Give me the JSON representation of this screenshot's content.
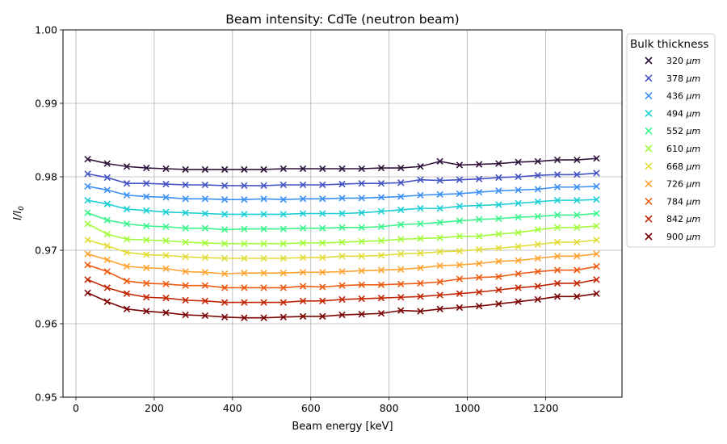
{
  "chart_data": {
    "type": "line",
    "title": "Beam intensity: CdTe (neutron beam)",
    "xlabel": "Beam energy [keV]",
    "ylabel": "I/I",
    "ylabel_subscript": "0",
    "xlim": [
      -33,
      1395
    ],
    "ylim": [
      0.95,
      1.0
    ],
    "x_ticks": [
      0,
      200,
      400,
      600,
      800,
      1000,
      1200
    ],
    "y_ticks": [
      0.95,
      0.96,
      0.97,
      0.98,
      0.99,
      1.0
    ],
    "x_tick_labels": [
      "0",
      "200",
      "400",
      "600",
      "800",
      "1000",
      "1200"
    ],
    "y_tick_labels": [
      "0.95",
      "0.96",
      "0.97",
      "0.98",
      "0.99",
      "1.00"
    ],
    "grid": true,
    "marker": "x",
    "legend_title": "Bulk thickness",
    "legend_unit": "μm",
    "legend_placement": "outside-right-top",
    "x": [
      30,
      80,
      130,
      180,
      230,
      280,
      330,
      380,
      430,
      480,
      530,
      580,
      630,
      680,
      730,
      780,
      830,
      880,
      930,
      980,
      1030,
      1080,
      1130,
      1180,
      1230,
      1280,
      1330
    ],
    "series": [
      {
        "name": "320",
        "color": "#30123b",
        "values": [
          0.9824,
          0.9818,
          0.9814,
          0.9812,
          0.9811,
          0.981,
          0.981,
          0.981,
          0.981,
          0.981,
          0.9811,
          0.9811,
          0.9811,
          0.9811,
          0.9811,
          0.9812,
          0.9812,
          0.9814,
          0.9821,
          0.9816,
          0.9817,
          0.9818,
          0.982,
          0.9821,
          0.9823,
          0.9823,
          0.9825
        ]
      },
      {
        "name": "378",
        "color": "#4454c4",
        "values": [
          0.9804,
          0.9799,
          0.9791,
          0.9791,
          0.979,
          0.9789,
          0.9789,
          0.9788,
          0.9788,
          0.9788,
          0.9789,
          0.9789,
          0.9789,
          0.979,
          0.9791,
          0.9791,
          0.9792,
          0.9796,
          0.9795,
          0.9796,
          0.9797,
          0.9799,
          0.98,
          0.9802,
          0.9803,
          0.9803,
          0.9805
        ]
      },
      {
        "name": "436",
        "color": "#3d91f5",
        "values": [
          0.9787,
          0.9782,
          0.9775,
          0.9773,
          0.9772,
          0.977,
          0.977,
          0.9769,
          0.9769,
          0.977,
          0.9769,
          0.977,
          0.977,
          0.9771,
          0.9771,
          0.9772,
          0.9773,
          0.9775,
          0.9776,
          0.9777,
          0.9779,
          0.9781,
          0.9782,
          0.9783,
          0.9786,
          0.9786,
          0.9787
        ]
      },
      {
        "name": "494",
        "color": "#1bcfd4",
        "values": [
          0.9768,
          0.9763,
          0.9756,
          0.9754,
          0.9752,
          0.9751,
          0.975,
          0.9749,
          0.9749,
          0.9749,
          0.9749,
          0.975,
          0.975,
          0.975,
          0.9751,
          0.9753,
          0.9755,
          0.9757,
          0.9757,
          0.976,
          0.9761,
          0.9762,
          0.9764,
          0.9766,
          0.9768,
          0.9768,
          0.9769
        ]
      },
      {
        "name": "552",
        "color": "#3df58d",
        "values": [
          0.9751,
          0.9741,
          0.9736,
          0.9733,
          0.9732,
          0.973,
          0.973,
          0.9728,
          0.9729,
          0.9729,
          0.9729,
          0.973,
          0.973,
          0.9731,
          0.9731,
          0.9732,
          0.9735,
          0.9736,
          0.9738,
          0.974,
          0.9742,
          0.9743,
          0.9745,
          0.9746,
          0.9748,
          0.9748,
          0.975
        ]
      },
      {
        "name": "610",
        "color": "#a2fc3c",
        "values": [
          0.9736,
          0.9722,
          0.9715,
          0.9714,
          0.9713,
          0.9711,
          0.971,
          0.9709,
          0.9709,
          0.9709,
          0.9709,
          0.971,
          0.971,
          0.9711,
          0.9712,
          0.9713,
          0.9715,
          0.9716,
          0.9717,
          0.9719,
          0.9719,
          0.9722,
          0.9724,
          0.9728,
          0.9731,
          0.9731,
          0.9733
        ]
      },
      {
        "name": "668",
        "color": "#e2dc38",
        "values": [
          0.9714,
          0.9706,
          0.9697,
          0.9694,
          0.9693,
          0.9691,
          0.969,
          0.9689,
          0.9689,
          0.9689,
          0.9689,
          0.969,
          0.969,
          0.9692,
          0.9692,
          0.9693,
          0.9695,
          0.9696,
          0.9698,
          0.9699,
          0.9701,
          0.9703,
          0.9705,
          0.9708,
          0.9711,
          0.9711,
          0.9714
        ]
      },
      {
        "name": "726",
        "color": "#fea331",
        "values": [
          0.9695,
          0.9687,
          0.9678,
          0.9676,
          0.9675,
          0.9671,
          0.967,
          0.9668,
          0.9669,
          0.9669,
          0.9669,
          0.967,
          0.967,
          0.9671,
          0.9672,
          0.9673,
          0.9674,
          0.9676,
          0.9679,
          0.968,
          0.9682,
          0.9685,
          0.9686,
          0.9689,
          0.9692,
          0.9692,
          0.9695
        ]
      },
      {
        "name": "784",
        "color": "#ef5a11",
        "values": [
          0.968,
          0.9671,
          0.9658,
          0.9655,
          0.9654,
          0.9652,
          0.9652,
          0.9649,
          0.9649,
          0.9649,
          0.9649,
          0.9651,
          0.965,
          0.9652,
          0.9653,
          0.9653,
          0.9654,
          0.9655,
          0.9657,
          0.9661,
          0.9663,
          0.9664,
          0.9668,
          0.9671,
          0.9673,
          0.9673,
          0.9678
        ]
      },
      {
        "name": "842",
        "color": "#c42503",
        "values": [
          0.966,
          0.9649,
          0.9641,
          0.9636,
          0.9635,
          0.9632,
          0.9631,
          0.9629,
          0.9629,
          0.9629,
          0.9629,
          0.9631,
          0.9631,
          0.9633,
          0.9634,
          0.9635,
          0.9636,
          0.9637,
          0.9639,
          0.9641,
          0.9643,
          0.9646,
          0.9649,
          0.9651,
          0.9655,
          0.9655,
          0.966
        ]
      },
      {
        "name": "900",
        "color": "#7a0403",
        "values": [
          0.9642,
          0.963,
          0.962,
          0.9617,
          0.9615,
          0.9612,
          0.9611,
          0.9609,
          0.9608,
          0.9608,
          0.9609,
          0.961,
          0.961,
          0.9612,
          0.9613,
          0.9614,
          0.9618,
          0.9617,
          0.962,
          0.9622,
          0.9624,
          0.9627,
          0.963,
          0.9633,
          0.9637,
          0.9637,
          0.9641
        ]
      }
    ]
  }
}
